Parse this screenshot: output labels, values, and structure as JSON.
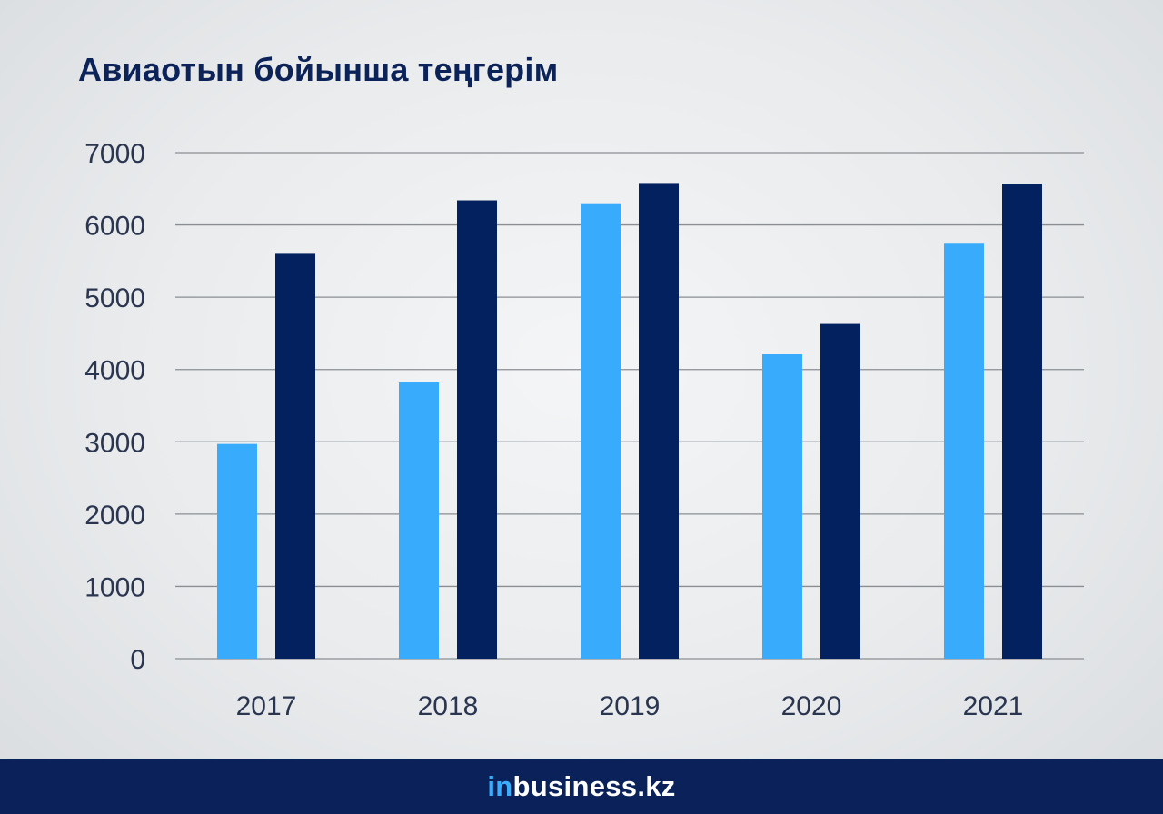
{
  "chart_data": {
    "type": "bar",
    "title": "Авиаотын бойынша теңгерім",
    "categories": [
      "2017",
      "2018",
      "2019",
      "2020",
      "2021"
    ],
    "series": [
      {
        "values": [
          2970,
          3820,
          6300,
          4210,
          5740
        ],
        "color": "#38abfc"
      },
      {
        "values": [
          5600,
          6340,
          6580,
          4630,
          6560
        ],
        "color": "#02215e"
      }
    ],
    "yticks": [
      "0",
      "1000",
      "2000",
      "3000",
      "4000",
      "5000",
      "6000",
      "7000"
    ],
    "ylim": [
      0,
      7000
    ],
    "grid": true,
    "legend": "none"
  },
  "footer": {
    "brand_prefix": "in",
    "brand_main": "business.kz"
  },
  "colors": {
    "title": "#0b2358",
    "footer_bg": "#0a2259",
    "gridline": "#8a8e93",
    "tick_text": "#2a3550"
  }
}
